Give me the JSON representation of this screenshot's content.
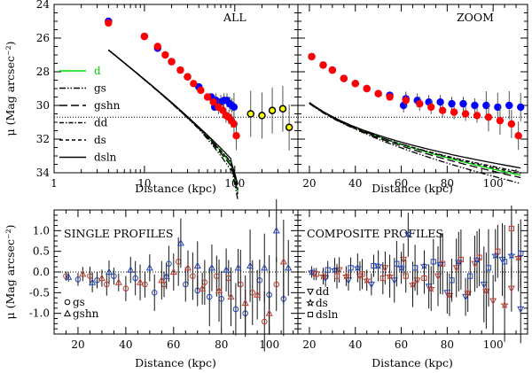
{
  "chart_data": [
    {
      "panel": "top-left",
      "type": "scatter",
      "title": "ALL",
      "xlabel": "Distance (kpc)",
      "ylabel": "μ (Mag arcsec⁻²)",
      "xscale": "log",
      "xlim": [
        1,
        500
      ],
      "ylim": [
        34,
        24
      ],
      "x_ticks": [
        "1",
        "10",
        "100"
      ],
      "y_ticks": [
        "24",
        "26",
        "28",
        "30",
        "32",
        "34"
      ],
      "hline": 30.7,
      "legend": {
        "position": "left",
        "entries": [
          {
            "label": "d",
            "style": "solid",
            "color": "#00dd00"
          },
          {
            "label": "gs",
            "style": "dash-dot-dot",
            "color": "#000000"
          },
          {
            "label": "gshn",
            "style": "long-dash",
            "color": "#000000"
          },
          {
            "label": "dd",
            "style": "dash-dot",
            "color": "#000000"
          },
          {
            "label": "ds",
            "style": "dashed",
            "color": "#000000"
          },
          {
            "label": "dsln",
            "style": "solid",
            "color": "#000000"
          }
        ]
      },
      "series": [
        {
          "color": "#0000ff",
          "points": [
            [
              4.0,
              25.0
            ],
            [
              10,
              25.9
            ],
            [
              14,
              26.6
            ],
            [
              20,
              27.4
            ],
            [
              30,
              28.3
            ],
            [
              40,
              28.9
            ],
            [
              55,
              29.5
            ],
            [
              62,
              29.7
            ],
            [
              70,
              29.8
            ],
            [
              76,
              29.7
            ],
            [
              82,
              29.7
            ],
            [
              88,
              29.9
            ],
            [
              93,
              30.0
            ],
            [
              98,
              30.1
            ],
            [
              60,
              30.1
            ]
          ]
        },
        {
          "color": "#ff0000",
          "points": [
            [
              4.0,
              25.1
            ],
            [
              10,
              25.9
            ],
            [
              14,
              26.5
            ],
            [
              17,
              27.0
            ],
            [
              20,
              27.4
            ],
            [
              25,
              27.9
            ],
            [
              30,
              28.3
            ],
            [
              35,
              28.7
            ],
            [
              42,
              29.1
            ],
            [
              50,
              29.5
            ],
            [
              58,
              29.8
            ],
            [
              66,
              30.1
            ],
            [
              74,
              30.3
            ],
            [
              80,
              30.6
            ],
            [
              86,
              30.7
            ],
            [
              92,
              30.9
            ],
            [
              98,
              31.1
            ],
            [
              104,
              31.8
            ]
          ]
        },
        {
          "color": "#ffff00",
          "points": [
            [
              150,
              30.5
            ],
            [
              200,
              30.6
            ],
            [
              260,
              30.3
            ],
            [
              340,
              30.2
            ],
            [
              400,
              31.3
            ]
          ]
        }
      ]
    },
    {
      "panel": "top-right",
      "type": "scatter",
      "title": "ZOOM",
      "xlabel": "Distance (kpc)",
      "xlim": [
        15,
        115
      ],
      "ylim": [
        34,
        24
      ],
      "x_ticks": [
        "20",
        "40",
        "60",
        "80",
        "100"
      ],
      "hline": 30.7,
      "series": [
        {
          "color": "#0000ff",
          "points": [
            [
              21,
              27.1
            ],
            [
              26,
              27.6
            ],
            [
              30,
              27.9
            ],
            [
              35,
              28.4
            ],
            [
              40,
              28.7
            ],
            [
              45,
              29.0
            ],
            [
              50,
              29.3
            ],
            [
              55,
              29.4
            ],
            [
              62,
              29.6
            ],
            [
              67,
              29.7
            ],
            [
              72,
              29.8
            ],
            [
              77,
              29.8
            ],
            [
              82,
              29.9
            ],
            [
              87,
              29.9
            ],
            [
              92,
              30.0
            ],
            [
              97,
              30.0
            ],
            [
              102,
              30.1
            ],
            [
              107,
              30.0
            ],
            [
              112,
              30.1
            ],
            [
              61,
              30.0
            ]
          ]
        },
        {
          "color": "#ff0000",
          "points": [
            [
              21,
              27.1
            ],
            [
              26,
              27.6
            ],
            [
              30,
              27.9
            ],
            [
              35,
              28.4
            ],
            [
              40,
              28.7
            ],
            [
              45,
              29.0
            ],
            [
              50,
              29.3
            ],
            [
              55,
              29.5
            ],
            [
              62,
              29.7
            ],
            [
              68,
              29.9
            ],
            [
              73,
              30.1
            ],
            [
              78,
              30.3
            ],
            [
              83,
              30.4
            ],
            [
              88,
              30.5
            ],
            [
              93,
              30.6
            ],
            [
              98,
              30.7
            ],
            [
              103,
              30.9
            ],
            [
              108,
              31.1
            ],
            [
              111,
              31.8
            ]
          ]
        }
      ]
    },
    {
      "panel": "bottom-left",
      "type": "scatter",
      "title": "SINGLE PROFILES",
      "xlabel": "Distance (kpc)",
      "ylabel": "μ (Mag arcsec⁻²)",
      "xlim": [
        10,
        112
      ],
      "ylim": [
        -1.5,
        1.5
      ],
      "x_ticks": [
        "20",
        "40",
        "60",
        "80",
        "100"
      ],
      "y_ticks": [
        "-1.0",
        "-0.5",
        "0.0",
        "0.5",
        "1.0"
      ],
      "hline": 0,
      "legend": {
        "position": "bottom-left",
        "entries": [
          {
            "label": "gs",
            "marker": "circle"
          },
          {
            "label": "gshn",
            "marker": "triangle"
          }
        ]
      },
      "series": [
        {
          "name": "gs",
          "marker": "circle",
          "points": [
            [
              15,
              -0.1
            ],
            [
              20,
              -0.18
            ],
            [
              25,
              -0.1
            ],
            [
              28,
              -0.2
            ],
            [
              32,
              -0.3
            ],
            [
              35,
              -0.1
            ],
            [
              40,
              -0.4
            ],
            [
              44,
              -0.15
            ],
            [
              48,
              -0.3
            ],
            [
              52,
              -0.5
            ],
            [
              56,
              -0.3
            ],
            [
              58,
              0.2
            ],
            [
              62,
              0.25
            ],
            [
              65,
              -0.3
            ],
            [
              68,
              -0.1
            ],
            [
              70,
              -0.45
            ],
            [
              73,
              -0.25
            ],
            [
              75,
              -0.6
            ],
            [
              78,
              -0.1
            ],
            [
              80,
              -0.65
            ],
            [
              83,
              -0.15
            ],
            [
              86,
              -0.9
            ],
            [
              88,
              -0.3
            ],
            [
              90,
              -1.0
            ],
            [
              93,
              -0.5
            ],
            [
              96,
              -0.2
            ],
            [
              98,
              -1.2
            ],
            [
              100,
              -0.55
            ],
            [
              103,
              -0.3
            ],
            [
              106,
              -0.65
            ]
          ]
        },
        {
          "name": "gshn",
          "marker": "triangle",
          "points": [
            [
              16,
              -0.12
            ],
            [
              22,
              -0.05
            ],
            [
              26,
              -0.25
            ],
            [
              30,
              -0.15
            ],
            [
              33,
              0.0
            ],
            [
              37,
              -0.25
            ],
            [
              42,
              0.05
            ],
            [
              46,
              -0.25
            ],
            [
              50,
              0.1
            ],
            [
              55,
              -0.2
            ],
            [
              57,
              -0.1
            ],
            [
              60,
              0.0
            ],
            [
              63,
              0.7
            ],
            [
              66,
              0.1
            ],
            [
              70,
              0.15
            ],
            [
              72,
              -0.4
            ],
            [
              76,
              0.1
            ],
            [
              79,
              -0.45
            ],
            [
              82,
              0.05
            ],
            [
              84,
              -0.6
            ],
            [
              87,
              0.1
            ],
            [
              90,
              -0.75
            ],
            [
              92,
              0.15
            ],
            [
              95,
              -0.55
            ],
            [
              98,
              0.1
            ],
            [
              100,
              -1.0
            ],
            [
              103,
              1.0
            ],
            [
              106,
              0.25
            ],
            [
              108,
              0.1
            ]
          ]
        }
      ]
    },
    {
      "panel": "bottom-right",
      "type": "scatter",
      "title": "COMPOSITE PROFILES",
      "xlabel": "Distance (kpc)",
      "xlim": [
        15,
        115
      ],
      "ylim": [
        -1.5,
        1.5
      ],
      "x_ticks": [
        "20",
        "40",
        "60",
        "80",
        "100"
      ],
      "hline": 0,
      "legend": {
        "position": "bottom-left",
        "entries": [
          {
            "label": "dd",
            "marker": "triangle-down"
          },
          {
            "label": "ds",
            "marker": "star"
          },
          {
            "label": "dsln",
            "marker": "square"
          }
        ]
      },
      "series": [
        {
          "name": "dd",
          "marker": "triangle-down",
          "points": [
            [
              22,
              -0.05
            ],
            [
              27,
              -0.15
            ],
            [
              33,
              0.05
            ],
            [
              37,
              -0.2
            ],
            [
              42,
              -0.1
            ],
            [
              47,
              -0.3
            ],
            [
              53,
              0.1
            ],
            [
              57,
              -0.2
            ],
            [
              61,
              0.3
            ],
            [
              63,
              0.9
            ],
            [
              67,
              -0.2
            ],
            [
              72,
              -0.35
            ],
            [
              76,
              -0.1
            ],
            [
              80,
              -0.5
            ],
            [
              84,
              0.1
            ],
            [
              88,
              -0.6
            ],
            [
              92,
              0.2
            ],
            [
              96,
              -0.3
            ],
            [
              100,
              -0.7
            ],
            [
              104,
              0.3
            ],
            [
              108,
              -0.4
            ],
            [
              112,
              -0.9
            ]
          ]
        },
        {
          "name": "ds",
          "marker": "star",
          "points": [
            [
              21,
              0.0
            ],
            [
              26,
              -0.1
            ],
            [
              31,
              0.05
            ],
            [
              36,
              -0.1
            ],
            [
              41,
              0.1
            ],
            [
              45,
              -0.2
            ],
            [
              50,
              0.15
            ],
            [
              55,
              -0.1
            ],
            [
              60,
              0.1
            ],
            [
              65,
              -0.3
            ],
            [
              70,
              0.15
            ],
            [
              73,
              -0.4
            ],
            [
              77,
              0.2
            ],
            [
              81,
              -0.55
            ],
            [
              85,
              0.25
            ],
            [
              89,
              -0.5
            ],
            [
              93,
              0.3
            ],
            [
              97,
              -0.45
            ],
            [
              101,
              0.4
            ],
            [
              105,
              -0.8
            ],
            [
              108,
              0.4
            ],
            [
              111,
              0.35
            ]
          ]
        },
        {
          "name": "dsln",
          "marker": "square",
          "points": [
            [
              23,
              -0.05
            ],
            [
              28,
              0.05
            ],
            [
              32,
              -0.1
            ],
            [
              38,
              0.1
            ],
            [
              43,
              -0.05
            ],
            [
              48,
              0.15
            ],
            [
              52,
              -0.15
            ],
            [
              58,
              0.2
            ],
            [
              62,
              -0.1
            ],
            [
              66,
              0.1
            ],
            [
              70,
              -0.15
            ],
            [
              74,
              0.25
            ],
            [
              78,
              0.2
            ],
            [
              82,
              -0.2
            ],
            [
              86,
              0.3
            ],
            [
              90,
              -0.1
            ],
            [
              94,
              0.35
            ],
            [
              98,
              0.1
            ],
            [
              102,
              0.5
            ],
            [
              105,
              0.25
            ],
            [
              108,
              1.05
            ],
            [
              112,
              0.45
            ]
          ]
        }
      ]
    }
  ]
}
